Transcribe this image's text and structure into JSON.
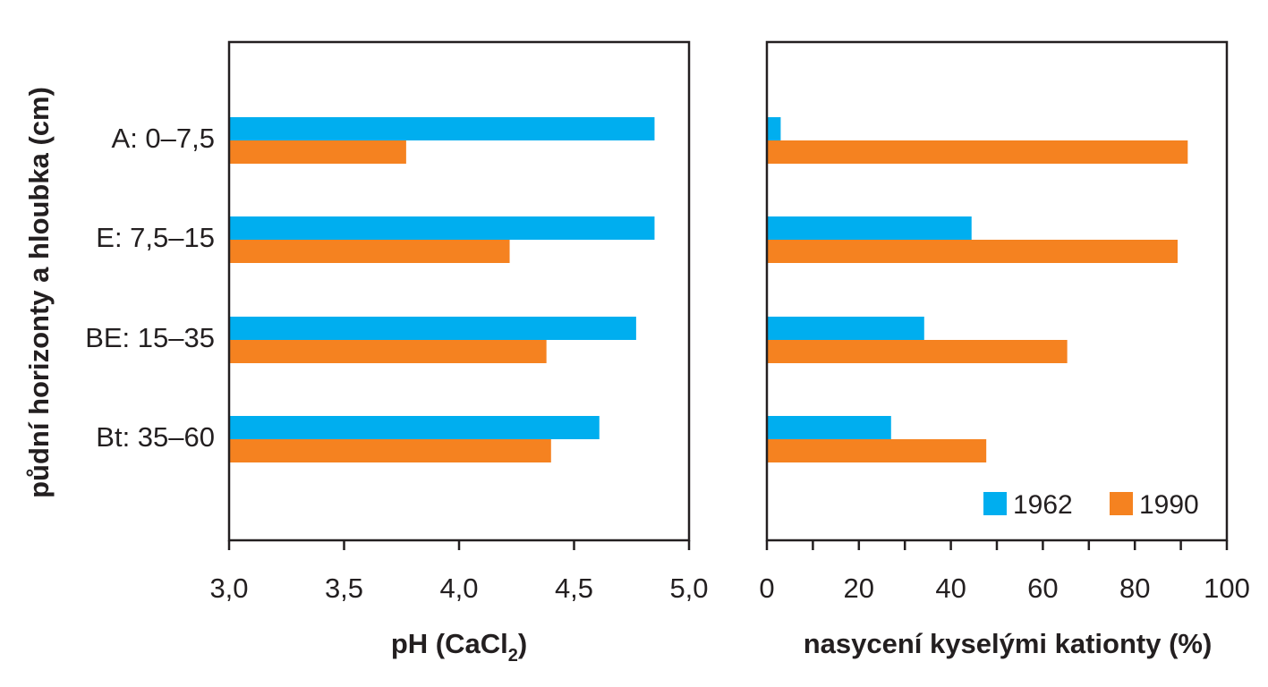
{
  "colors": {
    "series_1962": "#00aeef",
    "series_1990": "#f58220",
    "axis": "#231f20"
  },
  "legend": [
    "1962",
    "1990"
  ],
  "y_axis_title": "půdní horizonty a hloubka (cm)",
  "categories": [
    "A: 0–7,5",
    "E: 7,5–15",
    "BE: 15–35",
    "Bt: 35–60"
  ],
  "chart_data": [
    {
      "type": "bar",
      "orientation": "horizontal",
      "xlabel": "pH (CaCl2)",
      "xlabel_main": "pH (CaCl",
      "xlabel_sub": "2",
      "xlabel_close": ")",
      "ylabel": "půdní horizonty a hloubka (cm)",
      "xlim": [
        3.0,
        5.0
      ],
      "xticks": [
        3.0,
        3.5,
        4.0,
        4.5,
        5.0
      ],
      "xtick_labels": [
        "3,0",
        "3,5",
        "4,0",
        "4,5",
        "5,0"
      ],
      "categories": [
        "A: 0–7,5",
        "E: 7,5–15",
        "BE: 15–35",
        "Bt: 35–60"
      ],
      "series": [
        {
          "name": "1962",
          "values": [
            4.85,
            4.85,
            4.77,
            4.61
          ]
        },
        {
          "name": "1990",
          "values": [
            3.77,
            4.22,
            4.38,
            4.4
          ]
        }
      ],
      "grid": false
    },
    {
      "type": "bar",
      "orientation": "horizontal",
      "xlabel": "nasycení kyselými kationty (%)",
      "xlim": [
        0,
        100
      ],
      "xticks": [
        0,
        20,
        40,
        60,
        80,
        100
      ],
      "xtick_labels": [
        "0",
        "20",
        "40",
        "60",
        "80",
        "100"
      ],
      "categories": [
        "A: 0–7,5",
        "E: 7,5–15",
        "BE: 15–35",
        "Bt: 35–60"
      ],
      "series": [
        {
          "name": "1962",
          "values": [
            3,
            44.5,
            34.2,
            27
          ]
        },
        {
          "name": "1990",
          "values": [
            91.5,
            89.3,
            65.3,
            47.7
          ]
        }
      ],
      "legend_position": "bottom-right",
      "grid": false
    }
  ]
}
